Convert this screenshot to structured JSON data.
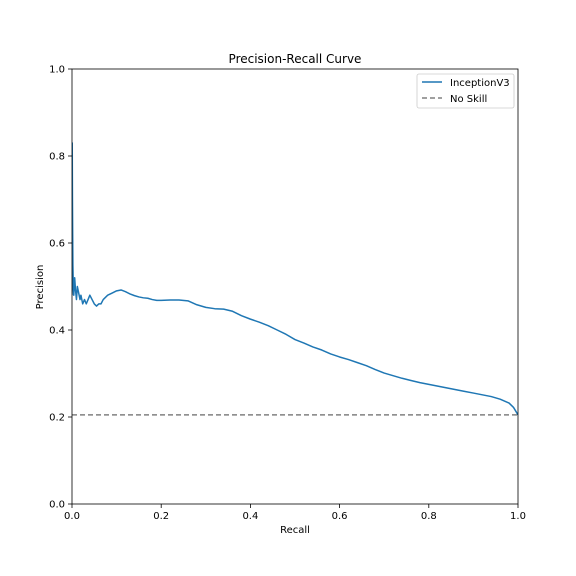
{
  "chart_data": {
    "type": "line",
    "title": "Precision-Recall Curve",
    "xlabel": "Recall",
    "ylabel": "Precision",
    "xlim": [
      0.0,
      1.0
    ],
    "ylim": [
      0.0,
      1.0
    ],
    "xticks": [
      "0.0",
      "0.2",
      "0.4",
      "0.6",
      "0.8",
      "1.0"
    ],
    "yticks": [
      "0.0",
      "0.2",
      "0.4",
      "0.6",
      "0.8",
      "1.0"
    ],
    "grid": false,
    "legend_position": "top-right",
    "series": [
      {
        "name": "InceptionV3",
        "color": "#1f77b4",
        "style": "solid",
        "points": [
          [
            0.0,
            0.48
          ],
          [
            0.0005,
            0.83
          ],
          [
            0.001,
            0.7
          ],
          [
            0.0015,
            0.62
          ],
          [
            0.002,
            0.55
          ],
          [
            0.003,
            0.5
          ],
          [
            0.004,
            0.48
          ],
          [
            0.006,
            0.52
          ],
          [
            0.008,
            0.49
          ],
          [
            0.01,
            0.47
          ],
          [
            0.012,
            0.5
          ],
          [
            0.014,
            0.49
          ],
          [
            0.016,
            0.48
          ],
          [
            0.018,
            0.47
          ],
          [
            0.02,
            0.48
          ],
          [
            0.024,
            0.46
          ],
          [
            0.028,
            0.47
          ],
          [
            0.032,
            0.46
          ],
          [
            0.036,
            0.47
          ],
          [
            0.04,
            0.48
          ],
          [
            0.045,
            0.47
          ],
          [
            0.05,
            0.46
          ],
          [
            0.055,
            0.455
          ],
          [
            0.06,
            0.46
          ],
          [
            0.065,
            0.46
          ],
          [
            0.07,
            0.47
          ],
          [
            0.08,
            0.48
          ],
          [
            0.09,
            0.485
          ],
          [
            0.1,
            0.49
          ],
          [
            0.11,
            0.492
          ],
          [
            0.12,
            0.488
          ],
          [
            0.13,
            0.483
          ],
          [
            0.14,
            0.479
          ],
          [
            0.15,
            0.476
          ],
          [
            0.16,
            0.474
          ],
          [
            0.17,
            0.473
          ],
          [
            0.18,
            0.47
          ],
          [
            0.19,
            0.468
          ],
          [
            0.2,
            0.468
          ],
          [
            0.22,
            0.469
          ],
          [
            0.24,
            0.469
          ],
          [
            0.26,
            0.467
          ],
          [
            0.28,
            0.458
          ],
          [
            0.3,
            0.452
          ],
          [
            0.32,
            0.449
          ],
          [
            0.34,
            0.448
          ],
          [
            0.36,
            0.443
          ],
          [
            0.38,
            0.433
          ],
          [
            0.4,
            0.425
          ],
          [
            0.42,
            0.418
          ],
          [
            0.44,
            0.41
          ],
          [
            0.46,
            0.4
          ],
          [
            0.48,
            0.39
          ],
          [
            0.5,
            0.378
          ],
          [
            0.52,
            0.37
          ],
          [
            0.54,
            0.361
          ],
          [
            0.56,
            0.354
          ],
          [
            0.58,
            0.345
          ],
          [
            0.6,
            0.338
          ],
          [
            0.62,
            0.332
          ],
          [
            0.64,
            0.325
          ],
          [
            0.66,
            0.318
          ],
          [
            0.68,
            0.309
          ],
          [
            0.7,
            0.301
          ],
          [
            0.72,
            0.295
          ],
          [
            0.74,
            0.289
          ],
          [
            0.76,
            0.284
          ],
          [
            0.78,
            0.279
          ],
          [
            0.8,
            0.275
          ],
          [
            0.82,
            0.271
          ],
          [
            0.84,
            0.267
          ],
          [
            0.86,
            0.263
          ],
          [
            0.88,
            0.259
          ],
          [
            0.9,
            0.255
          ],
          [
            0.92,
            0.251
          ],
          [
            0.94,
            0.247
          ],
          [
            0.96,
            0.241
          ],
          [
            0.98,
            0.232
          ],
          [
            0.99,
            0.222
          ],
          [
            1.0,
            0.205
          ]
        ]
      },
      {
        "name": "No Skill",
        "color": "#808080",
        "style": "dashed",
        "points": [
          [
            0.0,
            0.205
          ],
          [
            1.0,
            0.205
          ]
        ]
      }
    ]
  }
}
